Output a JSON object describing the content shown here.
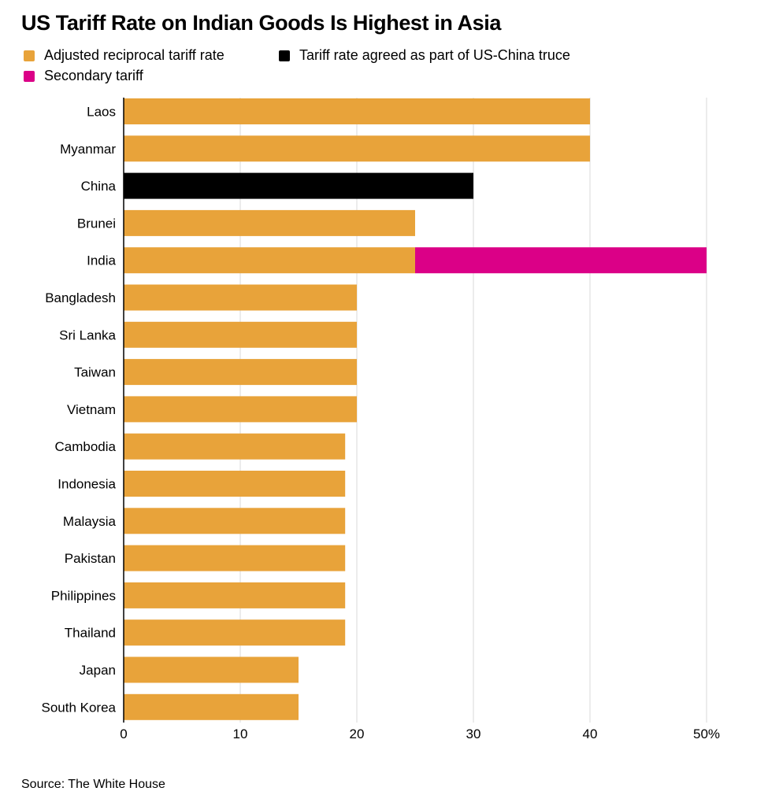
{
  "title": "US Tariff Rate on Indian Goods Is Highest in Asia",
  "source": "Source: The White House",
  "colors": {
    "reciprocal": "#E8A33A",
    "china_truce": "#000000",
    "secondary": "#DB0087",
    "grid": "#d9d9d9",
    "axis": "#000000"
  },
  "legend": [
    {
      "label": "Adjusted reciprocal tariff rate",
      "color_key": "reciprocal"
    },
    {
      "label": "Tariff rate agreed as part of US-China truce",
      "color_key": "china_truce"
    },
    {
      "label": "Secondary tariff",
      "color_key": "secondary"
    }
  ],
  "chart_data": {
    "type": "bar",
    "orientation": "horizontal",
    "stacked": true,
    "categories": [
      "Laos",
      "Myanmar",
      "China",
      "Brunei",
      "India",
      "Bangladesh",
      "Sri Lanka",
      "Taiwan",
      "Vietnam",
      "Cambodia",
      "Indonesia",
      "Malaysia",
      "Pakistan",
      "Philippines",
      "Thailand",
      "Japan",
      "South Korea"
    ],
    "series": [
      {
        "name": "Adjusted reciprocal tariff rate",
        "color_key": "reciprocal",
        "values": [
          40,
          40,
          0,
          25,
          25,
          20,
          20,
          20,
          20,
          19,
          19,
          19,
          19,
          19,
          19,
          15,
          15
        ]
      },
      {
        "name": "Tariff rate agreed as part of US-China truce",
        "color_key": "china_truce",
        "values": [
          0,
          0,
          30,
          0,
          0,
          0,
          0,
          0,
          0,
          0,
          0,
          0,
          0,
          0,
          0,
          0,
          0
        ]
      },
      {
        "name": "Secondary tariff",
        "color_key": "secondary",
        "values": [
          0,
          0,
          0,
          0,
          25,
          0,
          0,
          0,
          0,
          0,
          0,
          0,
          0,
          0,
          0,
          0,
          0
        ]
      }
    ],
    "xlim": [
      0,
      50
    ],
    "xticks": [
      0,
      10,
      20,
      30,
      40,
      50
    ],
    "xtick_labels": [
      "0",
      "10",
      "20",
      "30",
      "40",
      "50%"
    ],
    "grid": "vertical",
    "legend_position": "top-left"
  }
}
